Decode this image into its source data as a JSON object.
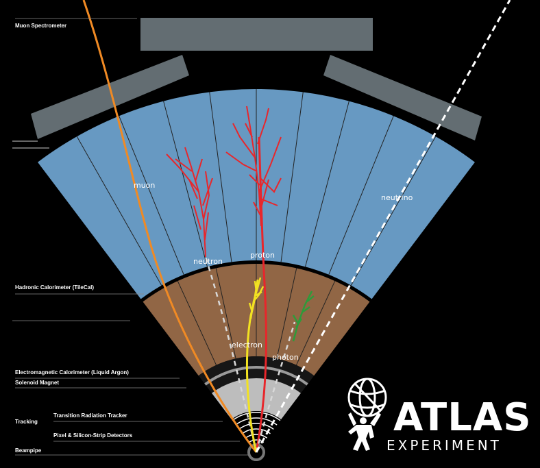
{
  "layer_labels": {
    "muon_spectrometer": "Muon Spectrometer",
    "hadronic_calorimeter": "Hadronic Calorimeter (TileCal)",
    "em_calorimeter": "Electromagnetic Calorimeter (Liquid Argon)",
    "solenoid_magnet": "Solenoid Magnet",
    "tracking": "Tracking",
    "transition_radiation_tracker": "Transition Radiation Tracker",
    "pixel_strip": "Pixel & Silicon-Strip Detectors",
    "beampipe": "Beampipe"
  },
  "particles": {
    "muon": "muon",
    "neutron": "neutron",
    "proton": "proton",
    "neutrino": "neutrino",
    "electron": "electron",
    "photon": "photon"
  },
  "colors": {
    "hadronic": "#6799c2",
    "em": "#916645",
    "tracker": "#bdbdbd",
    "muon_chamber": "#636d72",
    "muon_track": "#f08a24",
    "proton_track": "#e8262b",
    "electron_track": "#f2e222",
    "photon_shower": "#2e9b3a"
  },
  "logo": {
    "name": "ATLAS",
    "subtitle": "EXPERIMENT"
  }
}
